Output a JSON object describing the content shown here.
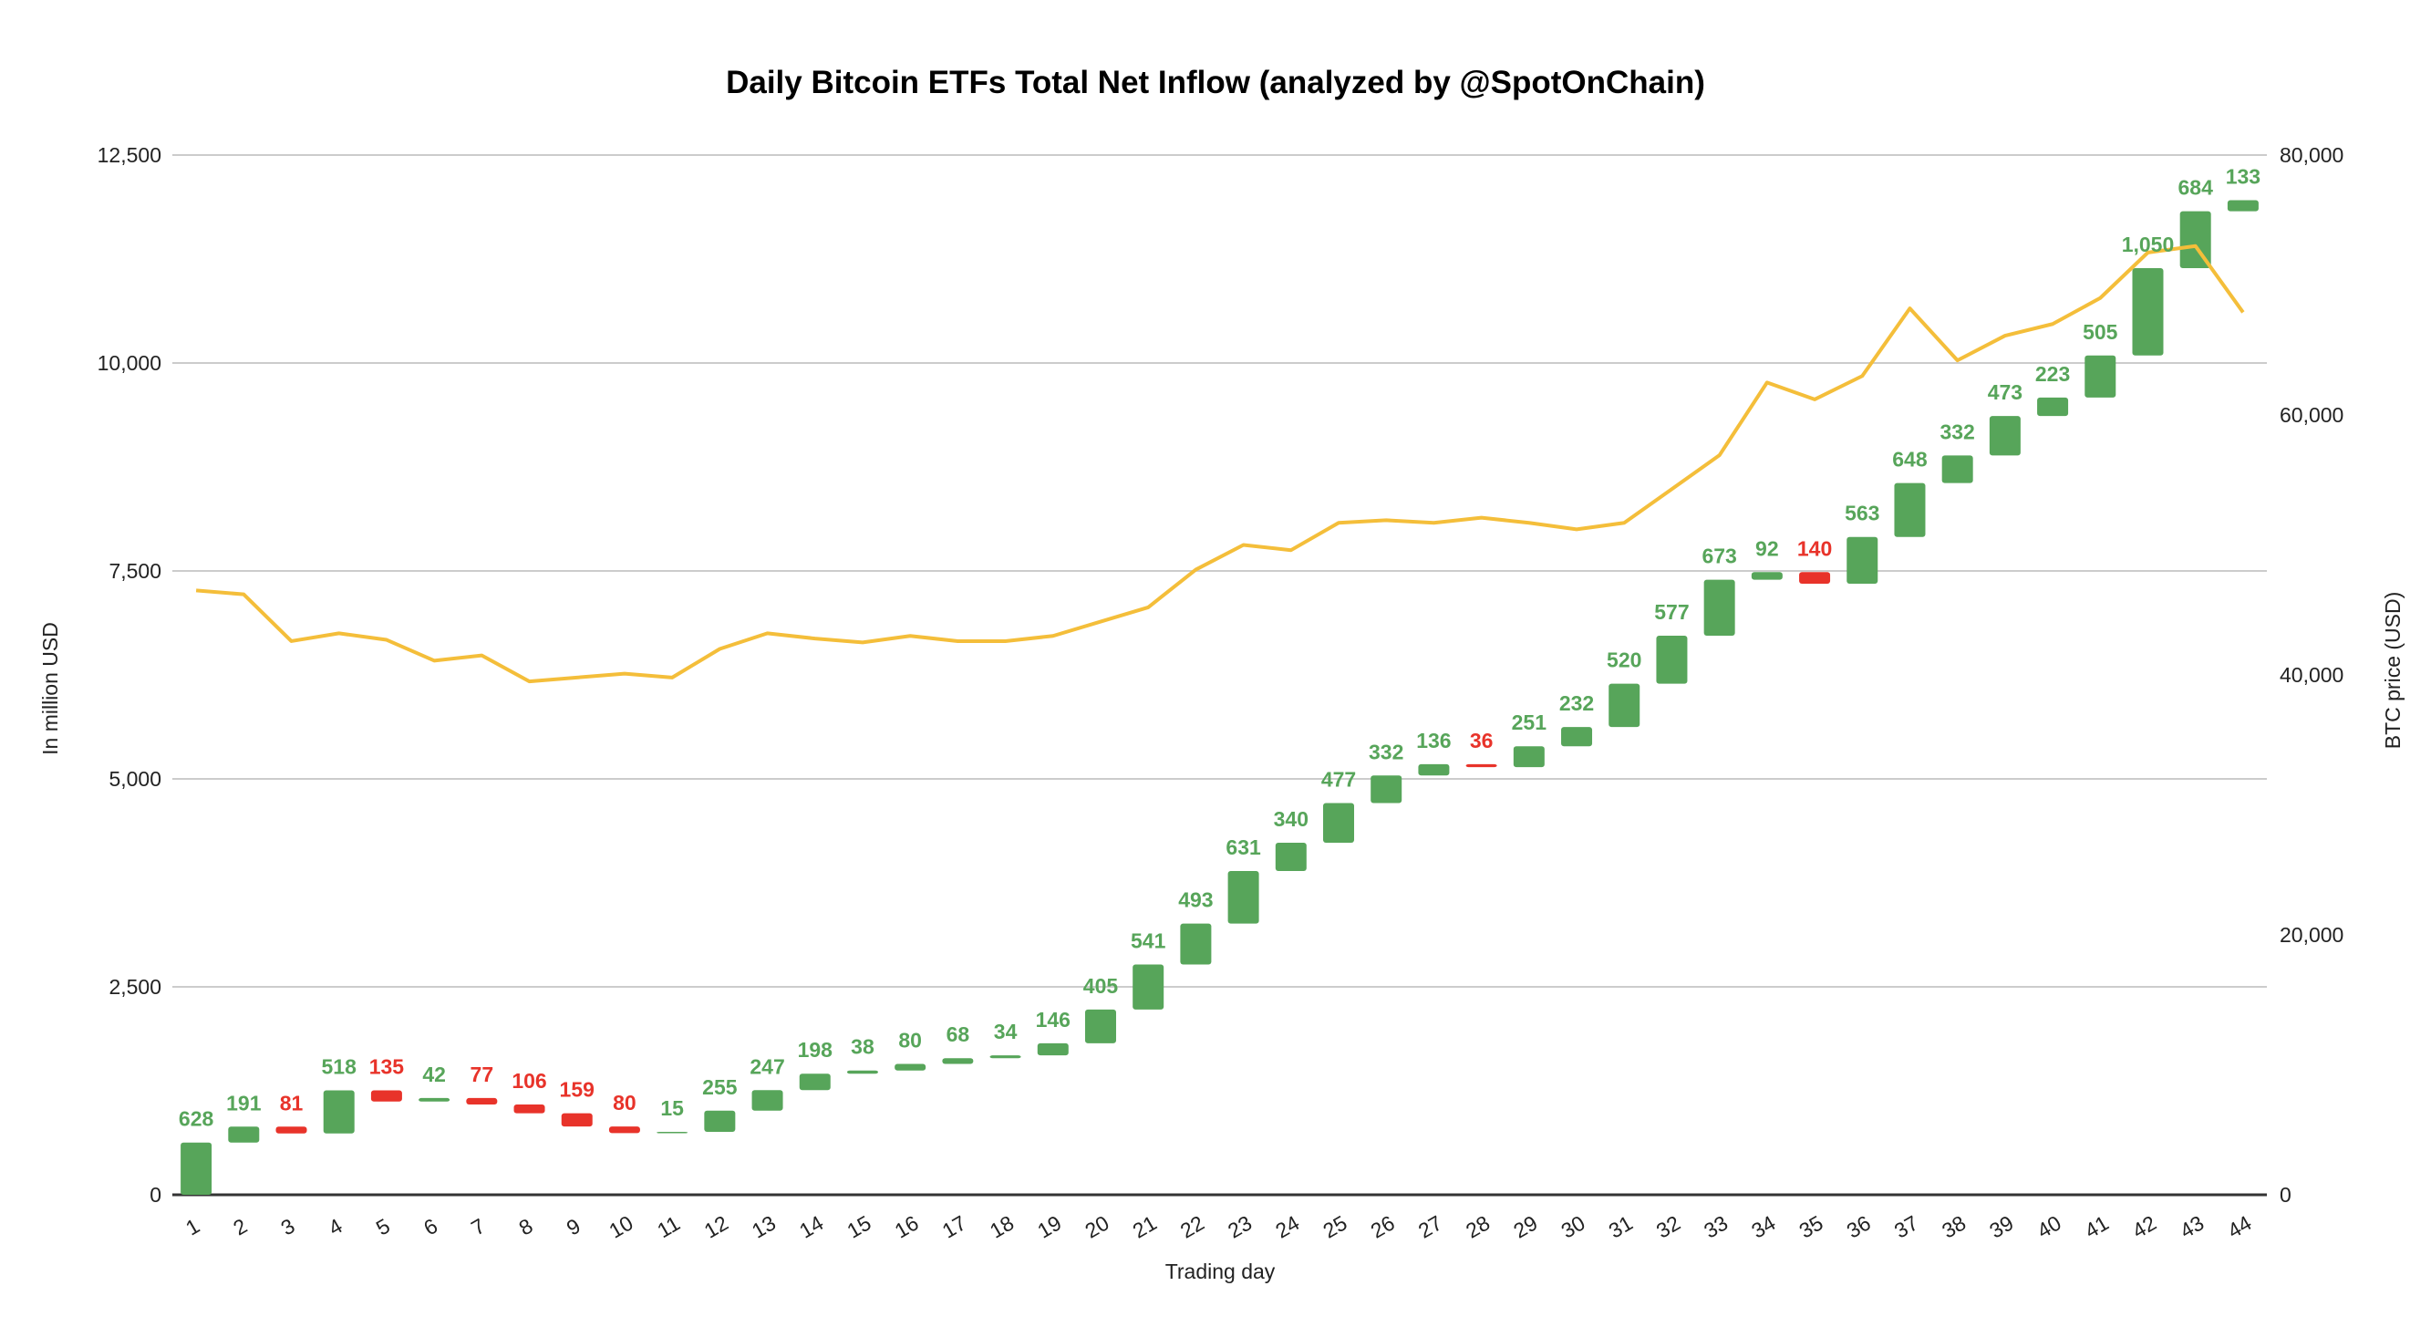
{
  "chart_data": {
    "type": "waterfall+line",
    "title": "Daily Bitcoin ETFs Total Net Inflow (analyzed by @SpotOnChain)",
    "xlabel": "Trading day",
    "ylabel_left": "In million USD",
    "ylabel_right": "BTC price (USD)",
    "ylim_left": [
      0,
      12500
    ],
    "yticks_left": [
      "0",
      "2,500",
      "5,000",
      "7,500",
      "10,000",
      "12,500"
    ],
    "ylim_right": [
      0,
      80000
    ],
    "yticks_right": [
      "0",
      "20,000",
      "40,000",
      "60,000",
      "80,000"
    ],
    "grid": true,
    "categories": [
      "1",
      "2",
      "3",
      "4",
      "5",
      "6",
      "7",
      "8",
      "9",
      "10",
      "11",
      "12",
      "13",
      "14",
      "15",
      "16",
      "17",
      "18",
      "19",
      "20",
      "21",
      "22",
      "23",
      "24",
      "25",
      "26",
      "27",
      "28",
      "29",
      "30",
      "31",
      "32",
      "33",
      "34",
      "35",
      "36",
      "37",
      "38",
      "39",
      "40",
      "41",
      "42",
      "43",
      "44"
    ],
    "net_inflow": [
      628,
      191,
      -81,
      518,
      -135,
      42,
      -77,
      -106,
      -159,
      -80,
      15,
      255,
      247,
      198,
      38,
      80,
      68,
      34,
      146,
      405,
      541,
      493,
      631,
      340,
      477,
      332,
      136,
      -36,
      251,
      232,
      520,
      577,
      673,
      92,
      -140,
      563,
      648,
      332,
      473,
      223,
      505,
      1050,
      684,
      133
    ],
    "data_labels": [
      "628",
      "191",
      "81",
      "518",
      "135",
      "42",
      "77",
      "106",
      "159",
      "80",
      "15",
      "255",
      "247",
      "198",
      "38",
      "80",
      "68",
      "34",
      "146",
      "405",
      "541",
      "493",
      "631",
      "340",
      "477",
      "332",
      "136",
      "36",
      "251",
      "232",
      "520",
      "577",
      "673",
      "92",
      "140",
      "563",
      "648",
      "332",
      "473",
      "223",
      "505",
      "1,050",
      "684",
      "133"
    ],
    "btc_price": [
      46500,
      46200,
      42600,
      43200,
      42700,
      41100,
      41500,
      39500,
      39800,
      40100,
      39800,
      42000,
      43200,
      42800,
      42500,
      43000,
      42600,
      42600,
      43000,
      44100,
      45200,
      48100,
      50000,
      49600,
      51700,
      51900,
      51700,
      52100,
      51700,
      51200,
      51700,
      54300,
      56900,
      62500,
      61200,
      63000,
      68200,
      64200,
      66100,
      67000,
      69000,
      72500,
      73000,
      67900
    ],
    "colors": {
      "increase": "#57a55a",
      "decrease": "#e8332a",
      "price_line": "#f4be3a",
      "grid": "#cccccc"
    }
  }
}
